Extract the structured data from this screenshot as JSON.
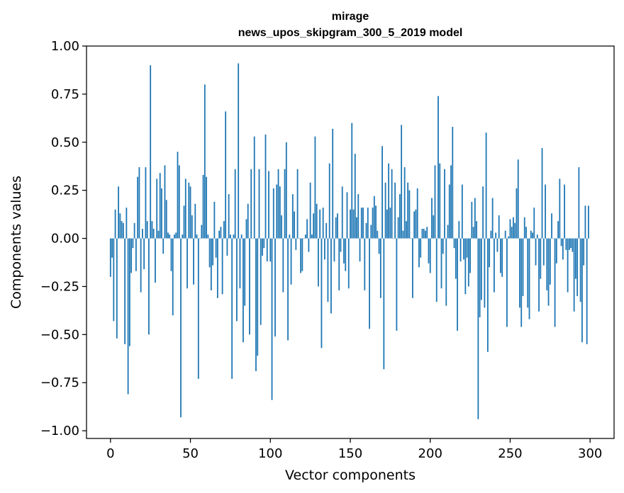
{
  "chart_data": {
    "type": "bar",
    "title": "mirage",
    "subtitle": "news_upos_skipgram_300_5_2019 model",
    "xlabel": "Vector components",
    "ylabel": "Components values",
    "xlim": [
      -15,
      315
    ],
    "ylim": [
      -1.04,
      1.0
    ],
    "xticks": [
      0,
      50,
      100,
      150,
      200,
      250,
      300
    ],
    "xtick_labels": [
      "0",
      "50",
      "100",
      "150",
      "200",
      "250",
      "300"
    ],
    "yticks": [
      1.0,
      0.75,
      0.5,
      0.25,
      0.0,
      -0.25,
      -0.5,
      -0.75,
      -1.0
    ],
    "ytick_labels": [
      "1.00",
      "0.75",
      "0.50",
      "0.25",
      "0.00",
      "−0.25",
      "−0.50",
      "−0.75",
      "−1.00"
    ],
    "bar_color": "#1f77b4",
    "values": [
      -0.2,
      -0.1,
      -0.43,
      0.15,
      -0.52,
      0.27,
      0.13,
      0.09,
      0.08,
      -0.55,
      0.16,
      -0.81,
      -0.56,
      -0.18,
      -0.05,
      0.08,
      -0.17,
      0.32,
      0.37,
      -0.28,
      0.05,
      -0.16,
      0.37,
      0.09,
      -0.5,
      0.9,
      0.09,
      0.05,
      -0.23,
      0.31,
      0.04,
      0.34,
      0.26,
      -0.08,
      0.38,
      0.2,
      0.03,
      0.02,
      -0.17,
      -0.4,
      0.02,
      0.03,
      0.45,
      0.38,
      -0.93,
      0.02,
      0.17,
      0.31,
      -0.26,
      0.29,
      0.27,
      0.12,
      -0.24,
      0.18,
      0.02,
      -0.73,
      0.0,
      0.07,
      0.33,
      0.8,
      0.32,
      0.02,
      -0.15,
      -0.27,
      -0.14,
      0.19,
      -0.1,
      -0.31,
      0.04,
      0.06,
      -0.29,
      0.09,
      0.66,
      -0.09,
      0.23,
      0.02,
      -0.73,
      0.02,
      0.36,
      -0.43,
      0.91,
      -0.26,
      0.02,
      -0.54,
      -0.35,
      0.1,
      0.18,
      -0.5,
      0.36,
      0.0,
      0.53,
      -0.69,
      -0.61,
      0.36,
      -0.45,
      -0.09,
      -0.05,
      0.54,
      -0.12,
      0.35,
      -0.12,
      -0.84,
      0.26,
      -0.51,
      0.28,
      0.36,
      0.27,
      0.12,
      -0.28,
      0.36,
      0.5,
      -0.53,
      0.02,
      -0.24,
      0.23,
      0.14,
      -0.06,
      0.36,
      0.0,
      -0.18,
      -0.17,
      0.0,
      0.02,
      0.1,
      -0.07,
      0.29,
      0.02,
      0.13,
      0.53,
      0.18,
      -0.25,
      0.15,
      -0.57,
      0.16,
      -0.11,
      0.08,
      -0.33,
      0.39,
      -0.39,
      0.57,
      -0.12,
      0.11,
      0.13,
      -0.27,
      -0.07,
      0.27,
      -0.13,
      -0.17,
      0.24,
      -0.26,
      0.15,
      0.6,
      0.15,
      0.44,
      0.11,
      0.23,
      -0.12,
      0.16,
      0.16,
      -0.27,
      0.08,
      0.16,
      -0.47,
      0.07,
      0.16,
      0.22,
      0.17,
      0.04,
      -0.08,
      -0.31,
      0.48,
      -0.68,
      0.29,
      0.15,
      0.39,
      0.16,
      0.36,
      0.0,
      0.29,
      -0.48,
      0.11,
      0.23,
      0.59,
      0.04,
      0.37,
      0.09,
      0.29,
      0.25,
      0.0,
      -0.31,
      0.14,
      0.15,
      0.26,
      -0.15,
      -0.1,
      0.05,
      0.05,
      0.04,
      0.06,
      -0.13,
      -0.18,
      0.21,
      0.12,
      0.38,
      -0.33,
      0.74,
      0.39,
      -0.26,
      -0.08,
      0.36,
      -0.35,
      0.07,
      0.28,
      0.38,
      0.58,
      -0.05,
      -0.21,
      -0.48,
      0.09,
      -0.12,
      0.28,
      -0.11,
      -0.29,
      -0.1,
      -0.25,
      -0.18,
      0.19,
      0.06,
      0.21,
      0.09,
      -0.94,
      -0.41,
      -0.32,
      0.27,
      -0.36,
      0.55,
      -0.59,
      -0.15,
      0.04,
      0.21,
      -0.28,
      0.03,
      -0.07,
      0.12,
      -0.18,
      -0.2,
      0.0,
      0.04,
      -0.46,
      0.01,
      0.1,
      0.06,
      0.11,
      0.08,
      0.26,
      0.41,
      -0.36,
      -0.46,
      -0.3,
      0.11,
      0.06,
      -0.36,
      -0.42,
      0.04,
      0.03,
      0.16,
      -0.14,
      0.02,
      -0.38,
      -0.21,
      0.47,
      -0.14,
      0.28,
      -0.27,
      -0.35,
      -0.24,
      0.13,
      0.0,
      -0.46,
      -0.13,
      0.09,
      0.31,
      -0.04,
      -0.11,
      0.28,
      -0.06,
      -0.28,
      -0.06,
      -0.05,
      -0.07,
      -0.38,
      -0.21,
      -0.3,
      0.37,
      -0.33,
      -0.54,
      -0.14,
      0.17,
      -0.55,
      0.17
    ]
  }
}
